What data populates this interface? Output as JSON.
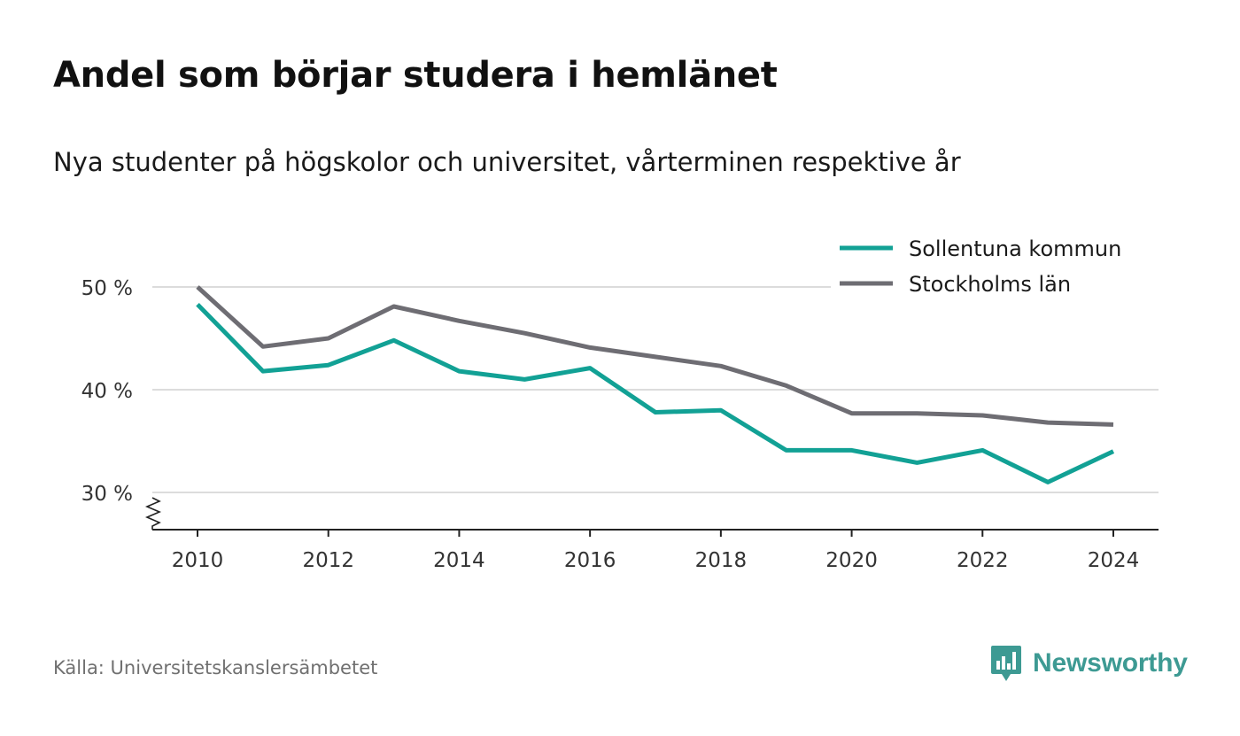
{
  "header": {
    "title": "Andel som börjar studera i hemlänet",
    "subtitle": "Nya studenter på högskolor och universitet, vårterminen respektive år"
  },
  "footer": {
    "source": "Källa: Universitetskanslersämbetet",
    "brand": "Newsworthy"
  },
  "colors": {
    "sollentuna": "#12a195",
    "stockholm": "#6e6d73",
    "brand": "#3d9a93"
  },
  "chart_data": {
    "type": "line",
    "title": "Andel som börjar studera i hemlänet",
    "subtitle": "Nya studenter på högskolor och universitet, vårterminen respektive år",
    "xlabel": "",
    "ylabel": "",
    "x": [
      2010,
      2011,
      2012,
      2013,
      2014,
      2015,
      2016,
      2017,
      2018,
      2019,
      2020,
      2021,
      2022,
      2023,
      2024
    ],
    "xticks": [
      "2010",
      "2012",
      "2014",
      "2016",
      "2018",
      "2020",
      "2022",
      "2024"
    ],
    "ylim": [
      26,
      50
    ],
    "yticks": [
      "30 %",
      "40 %",
      "50 %"
    ],
    "grid": true,
    "axis_break": true,
    "legend_position": "top-right",
    "series": [
      {
        "name": "Sollentuna kommun",
        "color": "#12a195",
        "values": [
          48.3,
          41.8,
          42.4,
          44.8,
          41.8,
          41.0,
          42.1,
          37.8,
          38.0,
          34.1,
          34.1,
          32.9,
          34.1,
          31.0,
          34.0
        ]
      },
      {
        "name": "Stockholms län",
        "color": "#6e6d73",
        "values": [
          50.0,
          44.2,
          45.0,
          48.1,
          46.7,
          45.5,
          44.1,
          43.2,
          42.3,
          40.4,
          37.7,
          37.7,
          37.5,
          36.8,
          36.6
        ]
      }
    ]
  }
}
